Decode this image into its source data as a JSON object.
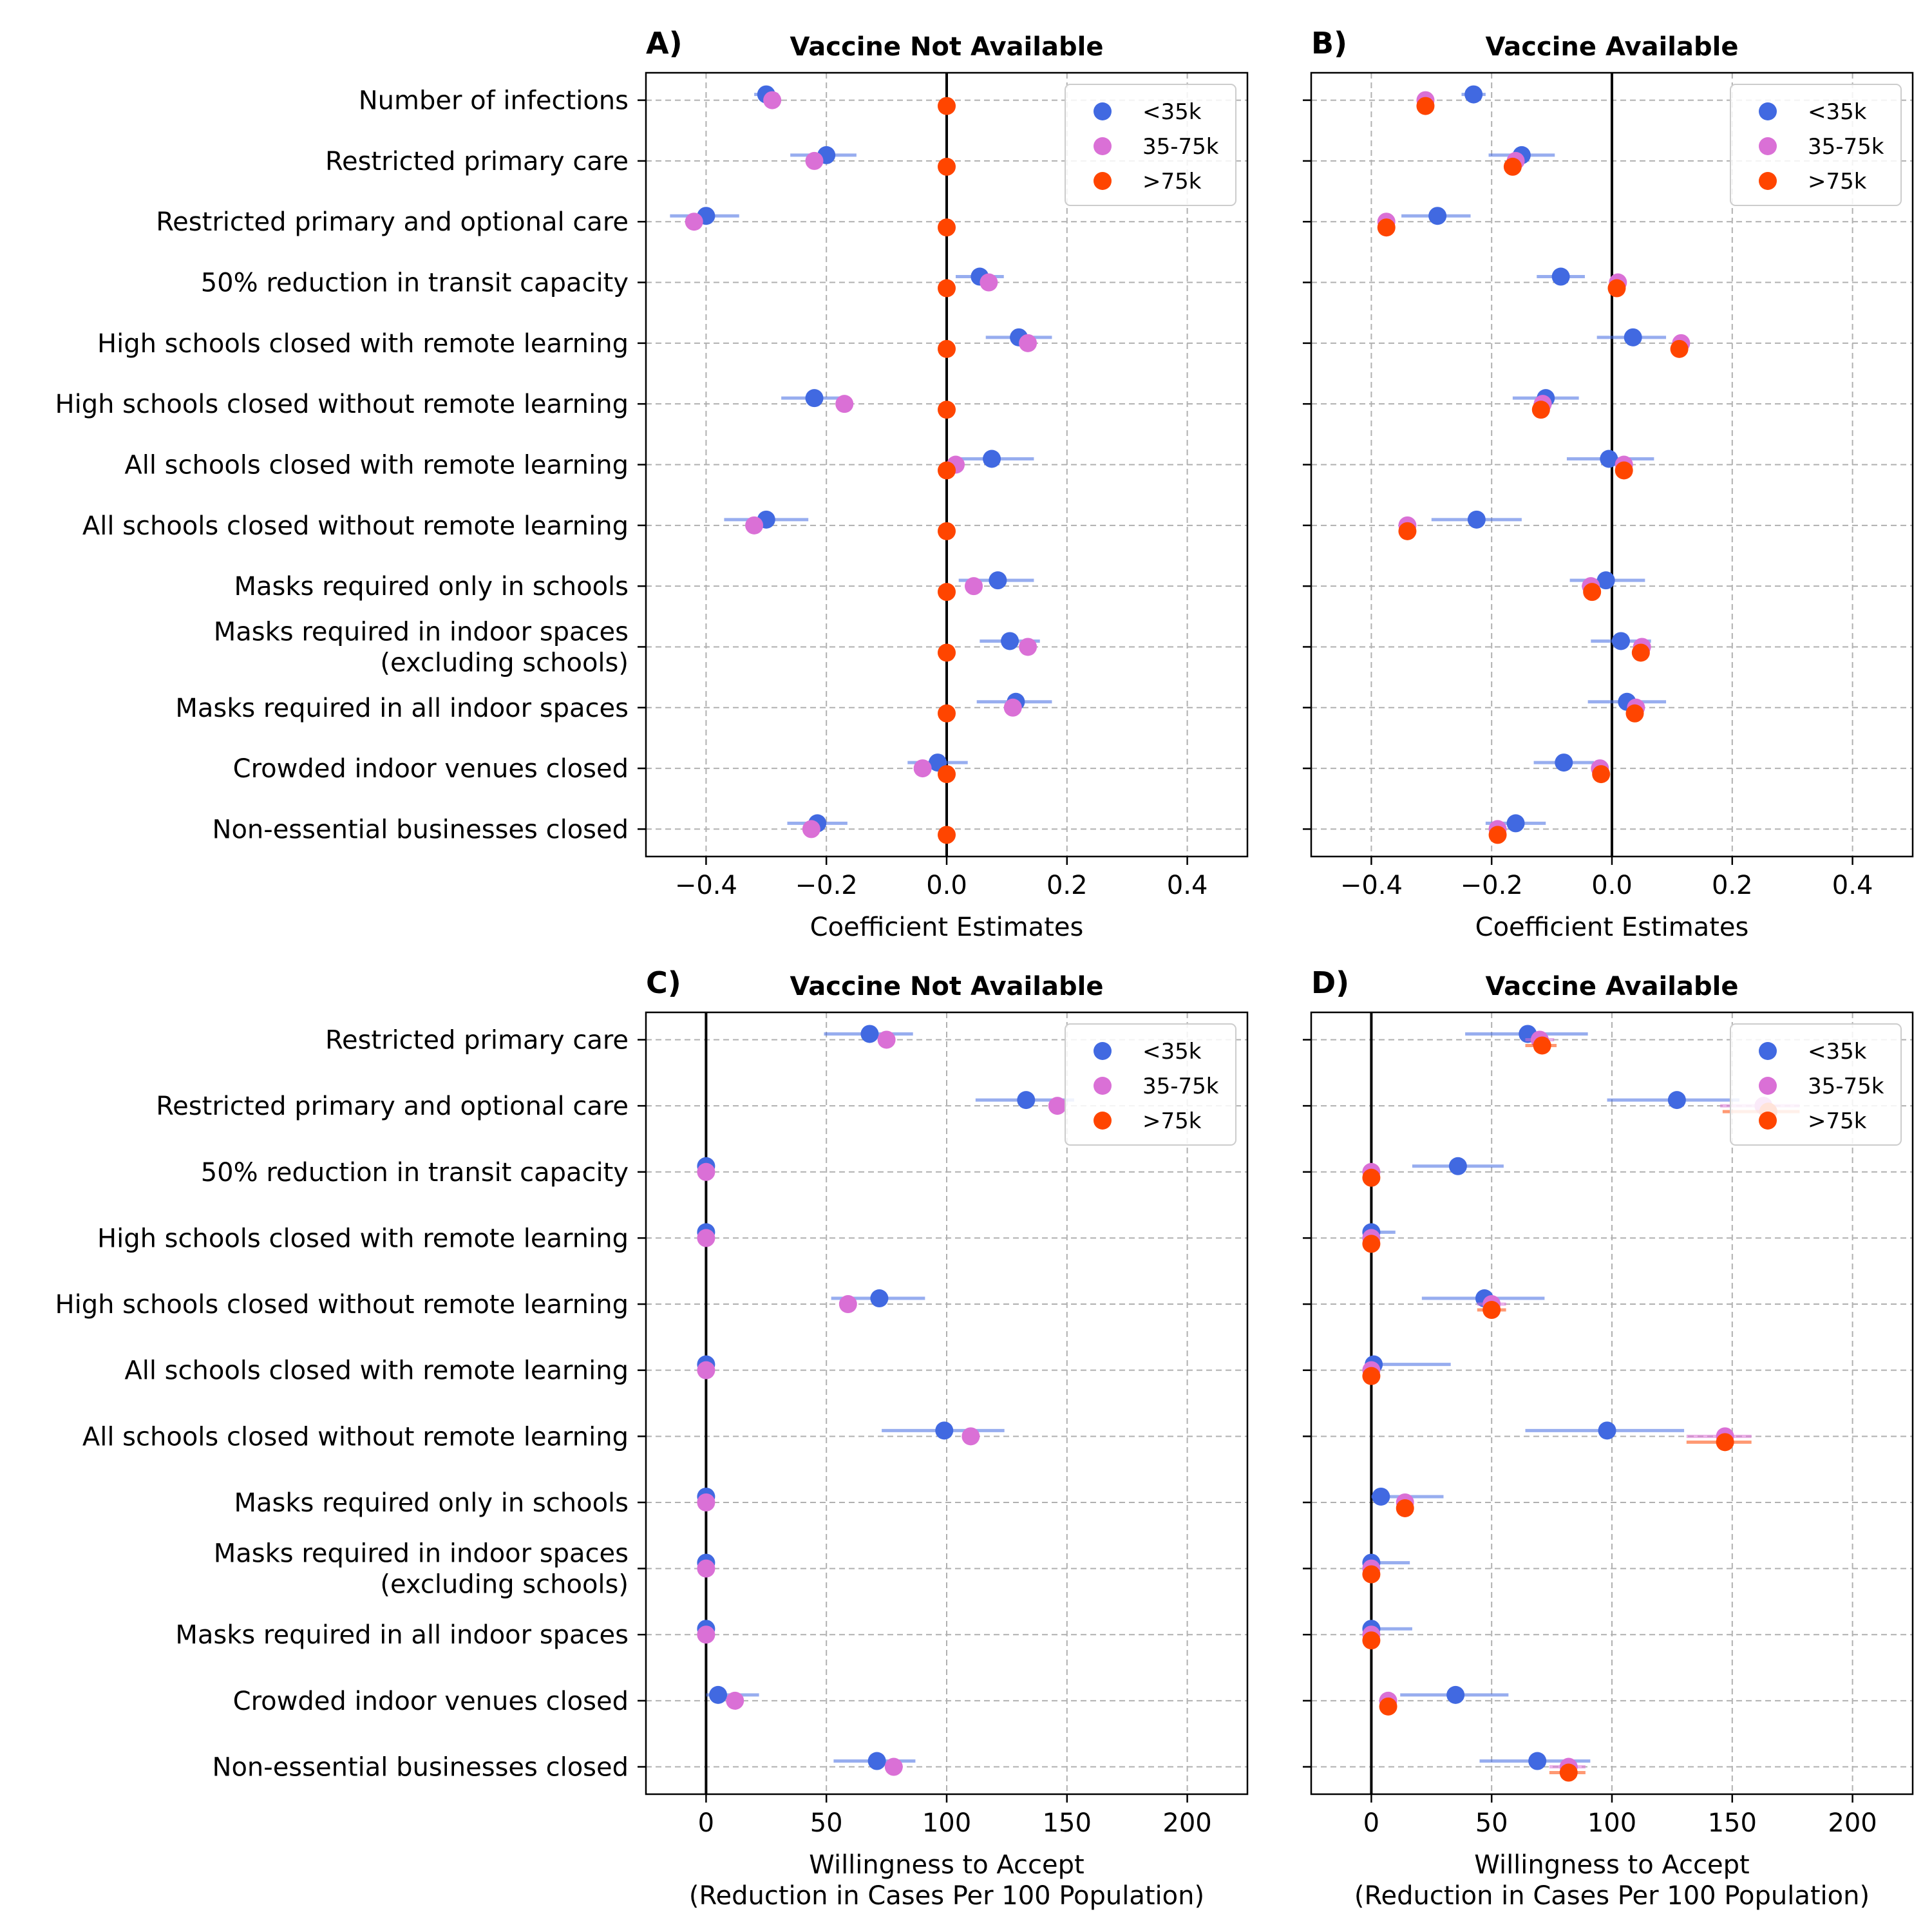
{
  "colors": {
    "under_35k": "#4169e1",
    "mid_35_75k": "#da70d6",
    "over_75k": "#ff4500",
    "zero_line": "#000000",
    "grid": "#b0b0b0"
  },
  "legend": [
    {
      "label": "<35k",
      "color": "#4169e1"
    },
    {
      "label": "35-75k",
      "color": "#da70d6"
    },
    {
      "label": ">75k",
      "color": "#ff4500"
    }
  ],
  "chart_data": [
    {
      "panel": "A)",
      "type": "scatter",
      "title": "Vaccine Not Available",
      "xlabel": "Coefficient Estimates",
      "xlim": [
        -0.5,
        0.5
      ],
      "xticks": [
        -0.4,
        -0.2,
        0.0,
        0.2,
        0.4
      ],
      "xtick_labels": [
        "−0.4",
        "−0.2",
        "0.0",
        "0.2",
        "0.4"
      ],
      "grid": true,
      "legend_position": "top-right",
      "categories": [
        [
          "Number of infections"
        ],
        [
          "Restricted primary care"
        ],
        [
          "Restricted primary and optional care"
        ],
        [
          "50% reduction in transit capacity"
        ],
        [
          "High schools closed with remote learning"
        ],
        [
          "High schools closed without remote learning"
        ],
        [
          "All schools closed with remote learning"
        ],
        [
          "All schools closed without remote learning"
        ],
        [
          "Masks required only in schools"
        ],
        [
          "Masks required in indoor spaces",
          "(excluding schools)"
        ],
        [
          "Masks required in all indoor spaces"
        ],
        [
          "Crowded indoor venues closed"
        ],
        [
          "Non-essential businesses closed"
        ]
      ],
      "series": [
        {
          "name": "<35k",
          "color": "#4169e1",
          "values": [
            -0.3,
            -0.2,
            -0.4,
            0.055,
            0.12,
            -0.22,
            0.075,
            -0.3,
            0.085,
            0.105,
            0.115,
            -0.015,
            -0.215
          ],
          "ci_low": [
            -0.32,
            -0.26,
            -0.46,
            0.015,
            0.065,
            -0.275,
            0.01,
            -0.37,
            0.02,
            0.055,
            0.05,
            -0.065,
            -0.265
          ],
          "ci_high": [
            -0.28,
            -0.15,
            -0.345,
            0.095,
            0.175,
            -0.165,
            0.145,
            -0.23,
            0.145,
            0.155,
            0.175,
            0.035,
            -0.165
          ]
        },
        {
          "name": "35-75k",
          "color": "#da70d6",
          "values": [
            -0.29,
            -0.22,
            -0.42,
            0.07,
            0.135,
            -0.17,
            0.015,
            -0.32,
            0.045,
            0.135,
            0.11,
            -0.04,
            -0.225
          ]
        },
        {
          "name": ">75k",
          "color": "#ff4500",
          "values": [
            0,
            0,
            0,
            0,
            0,
            0,
            0,
            0,
            0,
            0,
            0,
            0,
            0
          ]
        }
      ]
    },
    {
      "panel": "B)",
      "type": "scatter",
      "title": "Vaccine Available",
      "xlabel": "Coefficient Estimates",
      "xlim": [
        -0.5,
        0.5
      ],
      "xticks": [
        -0.4,
        -0.2,
        0.0,
        0.2,
        0.4
      ],
      "xtick_labels": [
        "−0.4",
        "−0.2",
        "0.0",
        "0.2",
        "0.4"
      ],
      "grid": true,
      "legend_position": "top-right",
      "series": [
        {
          "name": "<35k",
          "color": "#4169e1",
          "values": [
            -0.23,
            -0.15,
            -0.29,
            -0.085,
            0.035,
            -0.11,
            -0.005,
            -0.225,
            -0.01,
            0.015,
            0.025,
            -0.08,
            -0.16
          ],
          "ci_low": [
            -0.25,
            -0.205,
            -0.35,
            -0.125,
            -0.025,
            -0.165,
            -0.075,
            -0.3,
            -0.07,
            -0.035,
            -0.04,
            -0.13,
            -0.21
          ],
          "ci_high": [
            -0.21,
            -0.095,
            -0.235,
            -0.045,
            0.09,
            -0.055,
            0.07,
            -0.15,
            0.055,
            0.065,
            0.09,
            -0.03,
            -0.11
          ]
        },
        {
          "name": "35-75k",
          "color": "#da70d6",
          "values": [
            -0.31,
            -0.16,
            -0.375,
            0.01,
            0.115,
            -0.115,
            0.02,
            -0.34,
            -0.035,
            0.05,
            0.04,
            -0.02,
            -0.19
          ]
        },
        {
          "name": ">75k",
          "color": "#ff4500",
          "values": [
            -0.31,
            -0.165,
            -0.375,
            0.008,
            0.112,
            -0.118,
            0.02,
            -0.34,
            -0.033,
            0.048,
            0.038,
            -0.018,
            -0.19
          ]
        }
      ]
    },
    {
      "panel": "C)",
      "type": "scatter",
      "title": "Vaccine Not Available",
      "xlabel": [
        "Willingness to Accept",
        "(Reduction in Cases Per 100 Population)"
      ],
      "xlim": [
        -25,
        225
      ],
      "xticks": [
        0,
        50,
        100,
        150,
        200
      ],
      "xtick_labels": [
        "0",
        "50",
        "100",
        "150",
        "200"
      ],
      "grid": true,
      "legend_position": "top-right",
      "categories": [
        [
          "Restricted primary care"
        ],
        [
          "Restricted primary and optional care"
        ],
        [
          "50% reduction in transit capacity"
        ],
        [
          "High schools closed with remote learning"
        ],
        [
          "High schools closed without remote learning"
        ],
        [
          "All schools closed with remote learning"
        ],
        [
          "All schools closed without remote learning"
        ],
        [
          "Masks required only in schools"
        ],
        [
          "Masks required in indoor spaces",
          "(excluding schools)"
        ],
        [
          "Masks required in all indoor spaces"
        ],
        [
          "Crowded indoor venues closed"
        ],
        [
          "Non-essential businesses closed"
        ]
      ],
      "series": [
        {
          "name": "<35k",
          "color": "#4169e1",
          "values": [
            68,
            133,
            0,
            0,
            72,
            0,
            99,
            0,
            0,
            0,
            5,
            71
          ],
          "ci_low": [
            49,
            112,
            0,
            0,
            52,
            0,
            73,
            0,
            0,
            0,
            0,
            53
          ],
          "ci_high": [
            86,
            153,
            0,
            0,
            91,
            0,
            124,
            0,
            0,
            0,
            22,
            87
          ]
        },
        {
          "name": "35-75k",
          "color": "#da70d6",
          "values": [
            75,
            146,
            0,
            0,
            59,
            0,
            110,
            0,
            0,
            0,
            12,
            78
          ]
        }
      ]
    },
    {
      "panel": "D)",
      "type": "scatter",
      "title": "Vaccine Available",
      "xlabel": [
        "Willingness to Accept",
        "(Reduction in Cases Per 100 Population)"
      ],
      "xlim": [
        -25,
        225
      ],
      "xticks": [
        0,
        50,
        100,
        150,
        200
      ],
      "xtick_labels": [
        "0",
        "50",
        "100",
        "150",
        "200"
      ],
      "grid": true,
      "legend_position": "top-right",
      "series": [
        {
          "name": "<35k",
          "color": "#4169e1",
          "values": [
            65,
            127,
            36,
            0,
            47,
            1,
            98,
            4,
            0,
            0,
            35,
            69
          ],
          "ci_low": [
            39,
            98,
            17,
            0,
            21,
            0,
            64,
            0,
            0,
            0,
            12,
            45
          ],
          "ci_high": [
            90,
            153,
            55,
            10,
            72,
            33,
            130,
            30,
            16,
            17,
            57,
            91
          ]
        },
        {
          "name": "35-75k",
          "color": "#da70d6",
          "values": [
            70,
            163,
            0,
            0,
            50,
            0,
            147,
            14,
            0,
            0,
            7,
            82
          ],
          "ci_low": [
            64,
            145,
            0,
            0,
            44,
            0,
            131,
            11,
            0,
            0,
            5,
            74
          ],
          "ci_high": [
            76,
            178,
            0,
            0,
            56,
            0,
            158,
            17,
            0,
            0,
            9,
            89
          ]
        },
        {
          "name": ">75k",
          "color": "#ff4500",
          "values": [
            71,
            165,
            0,
            0,
            50,
            0,
            147,
            14,
            0,
            0,
            7,
            82
          ],
          "ci_low": [
            64,
            146,
            0,
            0,
            44,
            0,
            131,
            11,
            0,
            0,
            5,
            74
          ],
          "ci_high": [
            77,
            178,
            0,
            0,
            56,
            0,
            158,
            17,
            0,
            0,
            9,
            89
          ]
        }
      ]
    }
  ]
}
